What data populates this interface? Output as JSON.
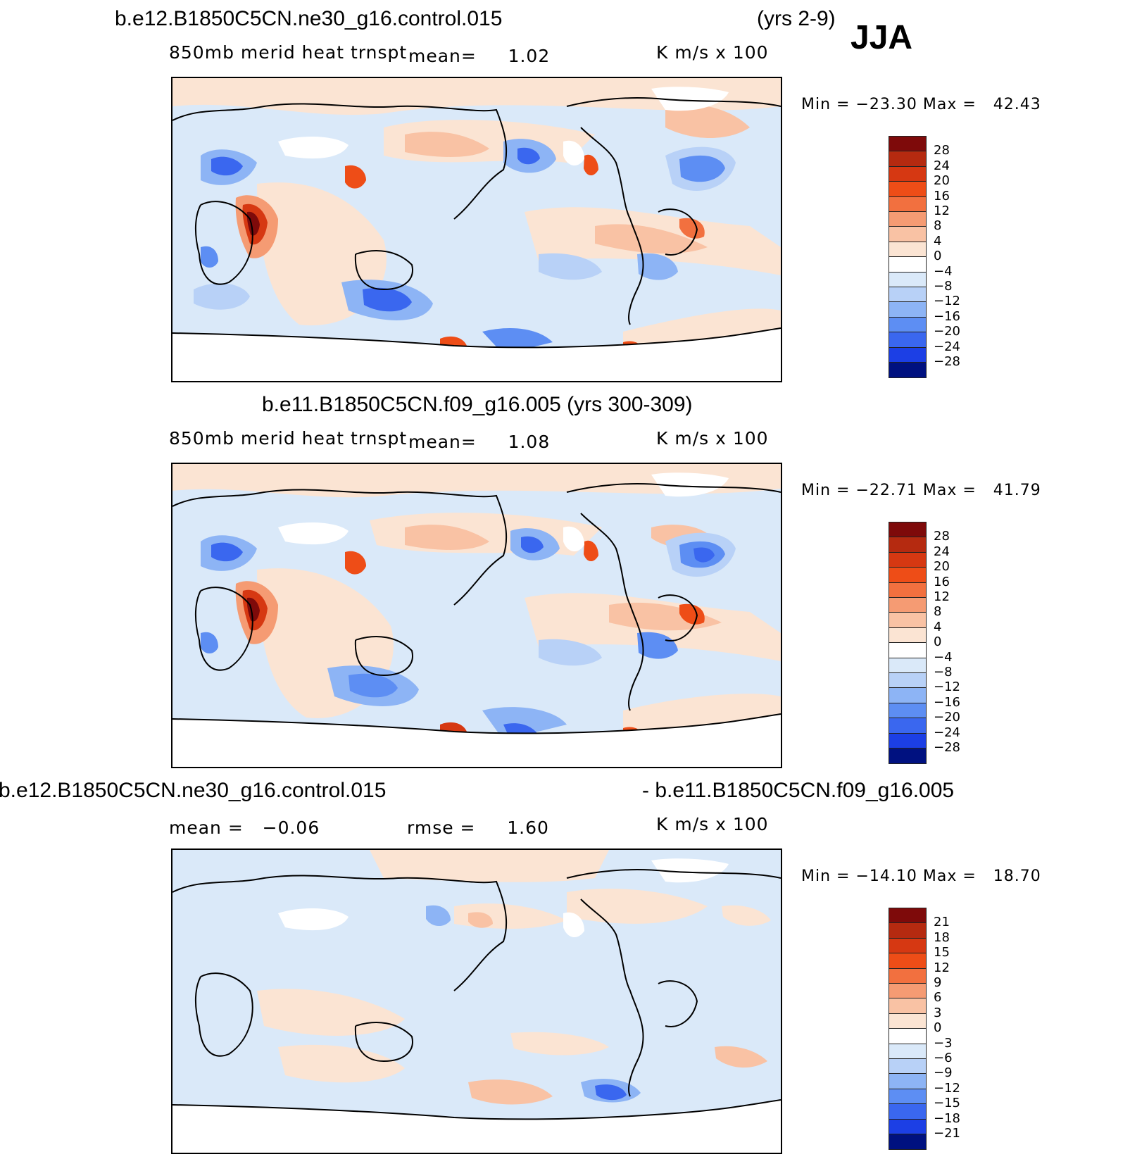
{
  "season": "JJA",
  "palette": {
    "warm": [
      "#fbe4d3",
      "#f9c2a4",
      "#f59b73",
      "#f2703f",
      "#ee4d17",
      "#d63812",
      "#b52a10",
      "#7e0a0a"
    ],
    "cool": [
      "#dae9f9",
      "#b8d1f7",
      "#8db4f5",
      "#5d8ef3",
      "#3a67ef",
      "#1c3fe5",
      "#0b25c5",
      "#001180"
    ],
    "land_outline": "#000000",
    "missing": "#ffffff"
  },
  "panels": [
    {
      "case_left": "b.e12.B1850C5CN.ne30_g16.control.015",
      "case_right": "(yrs 2-9)",
      "variable": "850mb merid heat trnspt",
      "mean_text": "mean=     1.02",
      "units": "K m/s x 100",
      "minmax": "Min = −23.30 Max =   42.43"
    },
    {
      "case_title": "b.e11.B1850C5CN.f09_g16.005 (yrs 300-309)",
      "variable": "850mb merid heat trnspt",
      "mean_text": "mean=     1.08",
      "units": "K m/s x 100",
      "minmax": "Min = −22.71 Max =   41.79"
    },
    {
      "case_left": "b.e12.B1850C5CN.ne30_g16.control.015",
      "case_right": "- b.e11.B1850C5CN.f09_g16.005",
      "mean_text": "mean =   −0.06",
      "rmse_text": "rmse =     1.60",
      "units": "K m/s x 100",
      "minmax": "Min = −14.10 Max =   18.70"
    }
  ],
  "chart_data": [
    {
      "type": "heatmap",
      "title": "b.e12.B1850C5CN.ne30_g16.control.015 (yrs 2-9)",
      "subtitle": "850mb merid heat trnspt",
      "mean": 1.02,
      "units": "K m/s x 100",
      "min": -23.3,
      "max": 42.43,
      "colorbar_levels": [
        28,
        24,
        20,
        16,
        12,
        8,
        4,
        0,
        -4,
        -8,
        -12,
        -16,
        -20,
        -24,
        -28
      ],
      "colorbar_labels": [
        "28",
        "24",
        "20",
        "16",
        "12",
        "8",
        "4",
        "0",
        "−4",
        "−8",
        "−12",
        "−16",
        "−20",
        "−24",
        "−28"
      ],
      "colorbar_colors": [
        "#7e0a0a",
        "#b52a10",
        "#d63812",
        "#ee4d17",
        "#f2703f",
        "#f59b73",
        "#f9c2a4",
        "#fbe4d3",
        "#ffffff",
        "#dae9f9",
        "#b8d1f7",
        "#8db4f5",
        "#5d8ef3",
        "#3a67ef",
        "#1c3fe5",
        "#001180"
      ]
    },
    {
      "type": "heatmap",
      "title": "b.e11.B1850C5CN.f09_g16.005 (yrs 300-309)",
      "subtitle": "850mb merid heat trnspt",
      "mean": 1.08,
      "units": "K m/s x 100",
      "min": -22.71,
      "max": 41.79,
      "colorbar_levels": [
        28,
        24,
        20,
        16,
        12,
        8,
        4,
        0,
        -4,
        -8,
        -12,
        -16,
        -20,
        -24,
        -28
      ],
      "colorbar_labels": [
        "28",
        "24",
        "20",
        "16",
        "12",
        "8",
        "4",
        "0",
        "−4",
        "−8",
        "−12",
        "−16",
        "−20",
        "−24",
        "−28"
      ],
      "colorbar_colors": [
        "#7e0a0a",
        "#b52a10",
        "#d63812",
        "#ee4d17",
        "#f2703f",
        "#f59b73",
        "#f9c2a4",
        "#fbe4d3",
        "#ffffff",
        "#dae9f9",
        "#b8d1f7",
        "#8db4f5",
        "#5d8ef3",
        "#3a67ef",
        "#1c3fe5",
        "#001180"
      ]
    },
    {
      "type": "heatmap",
      "title": "b.e12.B1850C5CN.ne30_g16.control.015 - b.e11.B1850C5CN.f09_g16.005",
      "mean": -0.06,
      "rmse": 1.6,
      "units": "K m/s x 100",
      "min": -14.1,
      "max": 18.7,
      "colorbar_levels": [
        21,
        18,
        15,
        12,
        9,
        6,
        3,
        0,
        -3,
        -6,
        -9,
        -12,
        -15,
        -18,
        -21
      ],
      "colorbar_labels": [
        "21",
        "18",
        "15",
        "12",
        "9",
        "6",
        "3",
        "0",
        "−3",
        "−6",
        "−9",
        "−12",
        "−15",
        "−18",
        "−21"
      ],
      "colorbar_colors": [
        "#7e0a0a",
        "#b52a10",
        "#d63812",
        "#ee4d17",
        "#f2703f",
        "#f59b73",
        "#f9c2a4",
        "#fbe4d3",
        "#ffffff",
        "#dae9f9",
        "#b8d1f7",
        "#8db4f5",
        "#5d8ef3",
        "#3a67ef",
        "#1c3fe5",
        "#001180"
      ]
    }
  ]
}
